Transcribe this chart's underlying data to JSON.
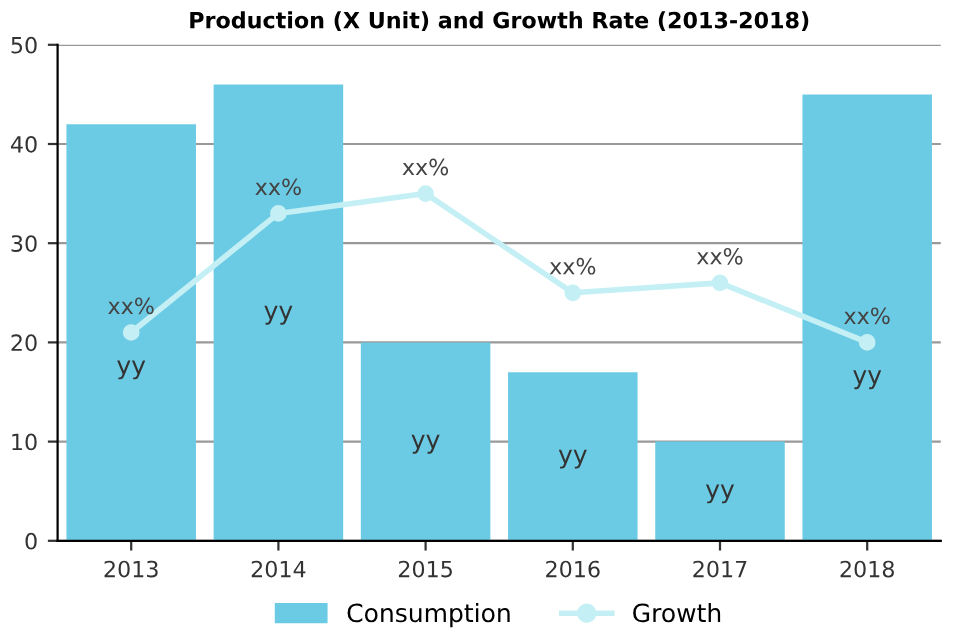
{
  "chart_data": {
    "type": "bar",
    "title": "Production (X Unit) and Growth Rate (2013-2018)",
    "categories": [
      "2013",
      "2014",
      "2015",
      "2016",
      "2017",
      "2018"
    ],
    "series": [
      {
        "name": "Consumption",
        "color": "#6ccbe4",
        "values": [
          42,
          46,
          20,
          17,
          10,
          45
        ],
        "value_labels": [
          "yy",
          "yy",
          "yy",
          "yy",
          "yy",
          "yy"
        ]
      },
      {
        "name": "Growth",
        "type": "line",
        "color": "#c4f0f5",
        "values": [
          21,
          33,
          35,
          25,
          26,
          20
        ],
        "value_labels": [
          "xx%",
          "xx%",
          "xx%",
          "xx%",
          "xx%",
          "xx%"
        ],
        "marker": "circle",
        "line_style": "solid"
      }
    ],
    "ylim": [
      0,
      50
    ],
    "yticks": [
      0,
      10,
      20,
      30,
      40,
      50
    ],
    "grid": "y",
    "legend": "bottom"
  }
}
